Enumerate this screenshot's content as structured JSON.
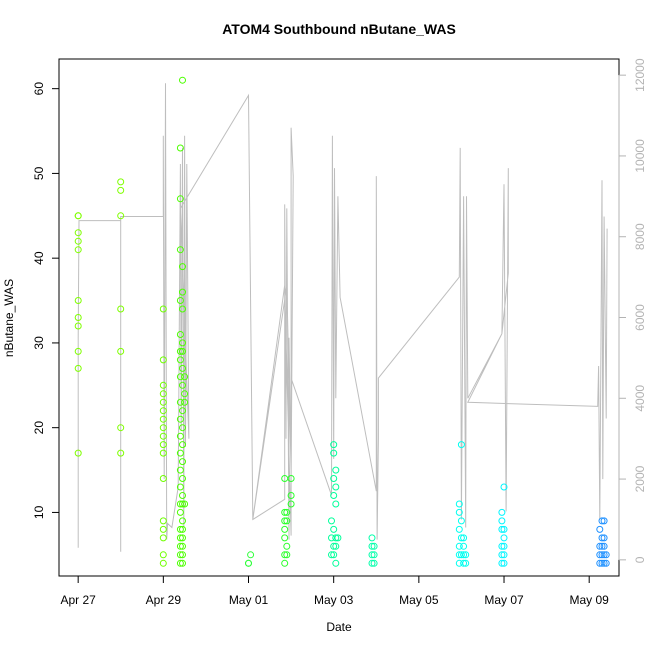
{
  "chart_data": {
    "type": "scatter",
    "title": "ATOM4 Southbound nButane_WAS",
    "xlabel": "Date",
    "ylabel": "nButane_WAS",
    "x_ticks": [
      "Apr 27",
      "Apr 29",
      "May 01",
      "May 03",
      "May 05",
      "May 07",
      "May 09"
    ],
    "x_tick_values": [
      0,
      2,
      4,
      6,
      8,
      10,
      12
    ],
    "y_ticks": [
      10,
      20,
      30,
      40,
      50,
      60
    ],
    "y2_ticks": [
      0,
      2000,
      4000,
      6000,
      8000,
      10000,
      12000
    ],
    "xlim": [
      -0.45,
      12.7
    ],
    "ylim": [
      2.5,
      63.5
    ],
    "y2lim": [
      -400,
      12400
    ],
    "grid": false,
    "legend": "none",
    "colors": {
      "axis": "#000000",
      "secondary_axis": "#b3b3b3",
      "line": "#bebebe"
    },
    "series": [
      {
        "values": [
          [
            0.0,
            45,
            "#7FFF00"
          ],
          [
            0.0,
            45,
            "#7FFF00"
          ],
          [
            0.0,
            43,
            "#7FFF00"
          ],
          [
            0.0,
            42,
            "#7FFF00"
          ],
          [
            0.0,
            41,
            "#7FFF00"
          ],
          [
            0.0,
            35,
            "#7FFF00"
          ],
          [
            0.0,
            33,
            "#7FFF00"
          ],
          [
            0.0,
            32,
            "#7FFF00"
          ],
          [
            0.0,
            29,
            "#7FFF00"
          ],
          [
            0.0,
            27,
            "#7FFF00"
          ],
          [
            0.0,
            17,
            "#7FFF00"
          ],
          [
            1.0,
            49,
            "#7FFF00"
          ],
          [
            1.0,
            48,
            "#7FFF00"
          ],
          [
            1.0,
            45,
            "#7FFF00"
          ],
          [
            1.0,
            34,
            "#7FFF00"
          ],
          [
            1.0,
            29,
            "#7FFF00"
          ],
          [
            1.0,
            20,
            "#7FFF00"
          ],
          [
            1.0,
            17,
            "#7FFF00"
          ],
          [
            2.0,
            34,
            "#6FFF00"
          ],
          [
            2.0,
            28,
            "#6FFF00"
          ],
          [
            2.0,
            25,
            "#6FFF00"
          ],
          [
            2.0,
            24,
            "#6FFF00"
          ],
          [
            2.0,
            23,
            "#6FFF00"
          ],
          [
            2.0,
            22,
            "#6FFF00"
          ],
          [
            2.0,
            21,
            "#6FFF00"
          ],
          [
            2.0,
            20,
            "#6FFF00"
          ],
          [
            2.0,
            19,
            "#6FFF00"
          ],
          [
            2.0,
            18,
            "#6FFF00"
          ],
          [
            2.0,
            17,
            "#6FFF00"
          ],
          [
            2.0,
            14,
            "#6FFF00"
          ],
          [
            2.0,
            9,
            "#6FFF00"
          ],
          [
            2.0,
            8,
            "#6FFF00"
          ],
          [
            2.0,
            7,
            "#6FFF00"
          ],
          [
            2.0,
            5,
            "#6FFF00"
          ],
          [
            2.0,
            4,
            "#6FFF00"
          ],
          [
            2.4,
            53,
            "#4CFF00"
          ],
          [
            2.4,
            47,
            "#4CFF00"
          ],
          [
            2.4,
            41,
            "#4CFF00"
          ],
          [
            2.45,
            61,
            "#4CFF00"
          ],
          [
            2.45,
            39,
            "#4CFF00"
          ],
          [
            2.45,
            36,
            "#4CFF00"
          ],
          [
            2.4,
            35,
            "#4CFF00"
          ],
          [
            2.45,
            34,
            "#4CFF00"
          ],
          [
            2.4,
            31,
            "#4CFF00"
          ],
          [
            2.45,
            30,
            "#4CFF00"
          ],
          [
            2.4,
            29,
            "#4CFF00"
          ],
          [
            2.45,
            29,
            "#4CFF00"
          ],
          [
            2.4,
            28,
            "#4CFF00"
          ],
          [
            2.45,
            27,
            "#4CFF00"
          ],
          [
            2.4,
            26,
            "#4CFF00"
          ],
          [
            2.5,
            26,
            "#4CFF00"
          ],
          [
            2.45,
            25,
            "#4CFF00"
          ],
          [
            2.5,
            24,
            "#4CFF00"
          ],
          [
            2.4,
            23,
            "#4CFF00"
          ],
          [
            2.5,
            23,
            "#4CFF00"
          ],
          [
            2.45,
            22,
            "#4CFF00"
          ],
          [
            2.4,
            21,
            "#4CFF00"
          ],
          [
            2.45,
            20,
            "#4CFF00"
          ],
          [
            2.4,
            19,
            "#4CFF00"
          ],
          [
            2.45,
            18,
            "#4CFF00"
          ],
          [
            2.4,
            17,
            "#4CFF00"
          ],
          [
            2.45,
            16,
            "#4CFF00"
          ],
          [
            2.4,
            15,
            "#4CFF00"
          ],
          [
            2.45,
            14,
            "#4CFF00"
          ],
          [
            2.4,
            13,
            "#4CFF00"
          ],
          [
            2.45,
            12,
            "#4CFF00"
          ],
          [
            2.4,
            11,
            "#4CFF00"
          ],
          [
            2.45,
            11,
            "#4CFF00"
          ],
          [
            2.5,
            11,
            "#4CFF00"
          ],
          [
            2.4,
            10,
            "#4CFF00"
          ],
          [
            2.45,
            9,
            "#4CFF00"
          ],
          [
            2.4,
            8,
            "#4CFF00"
          ],
          [
            2.45,
            8,
            "#4CFF00"
          ],
          [
            2.4,
            7,
            "#4CFF00"
          ],
          [
            2.45,
            7,
            "#4CFF00"
          ],
          [
            2.4,
            6,
            "#4CFF00"
          ],
          [
            2.45,
            6,
            "#4CFF00"
          ],
          [
            2.4,
            5,
            "#4CFF00"
          ],
          [
            2.45,
            5,
            "#4CFF00"
          ],
          [
            2.4,
            4,
            "#4CFF00"
          ],
          [
            2.45,
            4,
            "#4CFF00"
          ],
          [
            4.0,
            4,
            "#2EFF3A"
          ],
          [
            4.05,
            5,
            "#2EFF3A"
          ],
          [
            4.0,
            4,
            "#2EFF3A"
          ],
          [
            4.85,
            14,
            "#2AFF2A"
          ],
          [
            4.85,
            10,
            "#2AFF2A"
          ],
          [
            4.85,
            9,
            "#2AFF2A"
          ],
          [
            4.85,
            8,
            "#2AFF2A"
          ],
          [
            4.85,
            7,
            "#2AFF2A"
          ],
          [
            4.85,
            5,
            "#2AFF2A"
          ],
          [
            4.85,
            4,
            "#2AFF2A"
          ],
          [
            4.9,
            10,
            "#2AFF2A"
          ],
          [
            4.9,
            9,
            "#2AFF2A"
          ],
          [
            4.9,
            6,
            "#2AFF2A"
          ],
          [
            4.9,
            5,
            "#2AFF2A"
          ],
          [
            5.0,
            14,
            "#2AFF2A"
          ],
          [
            5.0,
            12,
            "#2AFF2A"
          ],
          [
            5.0,
            11,
            "#2AFF2A"
          ],
          [
            5.95,
            9,
            "#00FF9A"
          ],
          [
            6.0,
            18,
            "#00FF9A"
          ],
          [
            6.0,
            17,
            "#00FF9A"
          ],
          [
            6.05,
            15,
            "#00FF9A"
          ],
          [
            6.0,
            14,
            "#00FF9A"
          ],
          [
            6.05,
            13,
            "#00FF9A"
          ],
          [
            6.0,
            12,
            "#00FF9A"
          ],
          [
            6.05,
            11,
            "#00FF9A"
          ],
          [
            6.0,
            8,
            "#00FF9A"
          ],
          [
            5.95,
            7,
            "#00FF9A"
          ],
          [
            6.05,
            7,
            "#00FF9A"
          ],
          [
            6.0,
            6,
            "#00FF9A"
          ],
          [
            6.05,
            6,
            "#00FF9A"
          ],
          [
            6.0,
            5,
            "#00FF9A"
          ],
          [
            5.95,
            5,
            "#00FF9A"
          ],
          [
            6.05,
            4,
            "#00FF9A"
          ],
          [
            6.1,
            7,
            "#00FF9A"
          ],
          [
            6.9,
            7,
            "#00FFAA"
          ],
          [
            6.9,
            6,
            "#00FFAA"
          ],
          [
            6.95,
            6,
            "#00FFAA"
          ],
          [
            6.9,
            5,
            "#00FFAA"
          ],
          [
            6.95,
            5,
            "#00FFAA"
          ],
          [
            6.9,
            4,
            "#00FFAA"
          ],
          [
            6.95,
            4,
            "#00FFAA"
          ],
          [
            8.95,
            11,
            "#00FFF0"
          ],
          [
            8.95,
            10,
            "#00FFF0"
          ],
          [
            9.0,
            18,
            "#00FFF0"
          ],
          [
            9.0,
            9,
            "#00FFF0"
          ],
          [
            8.95,
            8,
            "#00FFF0"
          ],
          [
            9.05,
            7,
            "#00FFF0"
          ],
          [
            9.0,
            7,
            "#00FFF0"
          ],
          [
            8.95,
            6,
            "#00FFF0"
          ],
          [
            9.05,
            6,
            "#00FFF0"
          ],
          [
            8.95,
            5,
            "#00FFF0"
          ],
          [
            9.0,
            5,
            "#00FFF0"
          ],
          [
            9.05,
            5,
            "#00FFF0"
          ],
          [
            9.1,
            5,
            "#00FFF0"
          ],
          [
            8.95,
            4,
            "#00FFF0"
          ],
          [
            9.05,
            4,
            "#00FFF0"
          ],
          [
            9.1,
            4,
            "#00FFF0"
          ],
          [
            9.95,
            10,
            "#00F5FF"
          ],
          [
            10.0,
            13,
            "#00F5FF"
          ],
          [
            9.95,
            9,
            "#00F5FF"
          ],
          [
            10.0,
            8,
            "#00F5FF"
          ],
          [
            9.95,
            8,
            "#00F5FF"
          ],
          [
            10.0,
            7,
            "#00F5FF"
          ],
          [
            9.95,
            6,
            "#00F5FF"
          ],
          [
            10.0,
            6,
            "#00F5FF"
          ],
          [
            9.95,
            5,
            "#00F5FF"
          ],
          [
            10.0,
            5,
            "#00F5FF"
          ],
          [
            9.95,
            4,
            "#00F5FF"
          ],
          [
            10.0,
            4,
            "#00F5FF"
          ],
          [
            12.3,
            9,
            "#1E90FF"
          ],
          [
            12.35,
            9,
            "#1E90FF"
          ],
          [
            12.25,
            8,
            "#1E90FF"
          ],
          [
            12.3,
            7,
            "#1E90FF"
          ],
          [
            12.35,
            7,
            "#1E90FF"
          ],
          [
            12.25,
            6,
            "#1E90FF"
          ],
          [
            12.3,
            6,
            "#1E90FF"
          ],
          [
            12.35,
            6,
            "#1E90FF"
          ],
          [
            12.25,
            5,
            "#1E90FF"
          ],
          [
            12.3,
            5,
            "#1E90FF"
          ],
          [
            12.35,
            5,
            "#1E90FF"
          ],
          [
            12.4,
            5,
            "#1E90FF"
          ],
          [
            12.25,
            4,
            "#1E90FF"
          ],
          [
            12.3,
            4,
            "#1E90FF"
          ],
          [
            12.35,
            4,
            "#1E90FF"
          ],
          [
            12.4,
            4,
            "#1E90FF"
          ]
        ]
      },
      {
        "axis": "right",
        "values": [
          [
            0.0,
            300
          ],
          [
            0.0,
            5500
          ],
          [
            0.02,
            8400
          ],
          [
            1.0,
            8400
          ],
          [
            1.0,
            5400
          ],
          [
            1.0,
            200
          ],
          [
            1.0,
            8500
          ],
          [
            2.0,
            8500
          ],
          [
            2.0,
            10500
          ],
          [
            2.02,
            2000
          ],
          [
            2.05,
            11800
          ],
          [
            2.08,
            500
          ],
          [
            2.1,
            900
          ],
          [
            2.2,
            800
          ],
          [
            2.35,
            1800
          ],
          [
            2.4,
            9800
          ],
          [
            2.42,
            3200
          ],
          [
            2.45,
            10200
          ],
          [
            2.48,
            800
          ],
          [
            2.5,
            10500
          ],
          [
            2.52,
            2800
          ],
          [
            2.55,
            9800
          ],
          [
            2.6,
            3000
          ],
          [
            2.4,
            8700
          ],
          [
            4.0,
            11500
          ],
          [
            4.1,
            1000
          ],
          [
            4.85,
            1500
          ],
          [
            4.85,
            8800
          ],
          [
            4.88,
            3000
          ],
          [
            4.9,
            8700
          ],
          [
            4.95,
            500
          ],
          [
            4.95,
            5500
          ],
          [
            5.0,
            2200
          ],
          [
            4.9,
            6800
          ],
          [
            4.1,
            1000
          ],
          [
            4.85,
            6800
          ],
          [
            5.0,
            600
          ],
          [
            5.0,
            10700
          ],
          [
            5.05,
            9500
          ],
          [
            5.0,
            2000
          ],
          [
            5.0,
            4500
          ],
          [
            5.95,
            1600
          ],
          [
            5.97,
            10500
          ],
          [
            6.0,
            2500
          ],
          [
            6.02,
            9700
          ],
          [
            6.05,
            4000
          ],
          [
            6.1,
            9000
          ],
          [
            6.15,
            6500
          ],
          [
            7.0,
            1700
          ],
          [
            7.0,
            9500
          ],
          [
            7.02,
            500
          ],
          [
            7.05,
            3000
          ],
          [
            7.05,
            4500
          ],
          [
            8.95,
            7000
          ],
          [
            8.97,
            10200
          ],
          [
            9.0,
            1000
          ],
          [
            9.05,
            9000
          ],
          [
            9.1,
            800
          ],
          [
            9.12,
            9000
          ],
          [
            9.15,
            4000
          ],
          [
            9.95,
            5600
          ],
          [
            10.0,
            9300
          ],
          [
            10.05,
            1200
          ],
          [
            10.1,
            9700
          ],
          [
            10.1,
            7100
          ],
          [
            9.95,
            5600
          ],
          [
            9.15,
            3900
          ],
          [
            12.2,
            3800
          ],
          [
            12.22,
            4800
          ],
          [
            12.25,
            1000
          ],
          [
            12.3,
            9400
          ],
          [
            12.32,
            2000
          ],
          [
            12.35,
            8500
          ],
          [
            12.4,
            3500
          ],
          [
            12.42,
            8200
          ]
        ]
      }
    ]
  }
}
